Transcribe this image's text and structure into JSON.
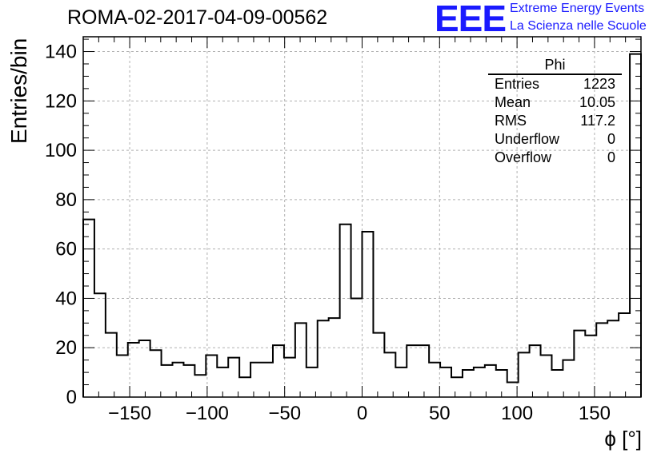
{
  "header": {
    "run_title": "ROMA-02-2017-04-09-00562",
    "logo_text": "EEE",
    "logo_line1": "Extreme Energy Events",
    "logo_line2": "La Scienza nelle Scuole",
    "brand_color": "#1a1aff"
  },
  "stats": {
    "title": "Phi",
    "rows": [
      {
        "label": "Entries",
        "value": "1223"
      },
      {
        "label": "Mean",
        "value": "10.05"
      },
      {
        "label": "RMS",
        "value": "117.2"
      },
      {
        "label": "Underflow",
        "value": "0"
      },
      {
        "label": "Overflow",
        "value": "0"
      }
    ]
  },
  "chart_data": {
    "type": "bar",
    "style": "step-histogram",
    "title": "ROMA-02-2017-04-09-00562",
    "xlabel": "ϕ [°]",
    "ylabel": "Entries/bin",
    "xlim": [
      -180,
      180
    ],
    "ylim": [
      0,
      146
    ],
    "bin_width": 7.2,
    "grid": true,
    "xticks": [
      -150,
      -100,
      -50,
      0,
      50,
      100,
      150
    ],
    "yticks": [
      0,
      20,
      40,
      60,
      80,
      100,
      120,
      140
    ],
    "values": [
      72,
      42,
      26,
      17,
      22,
      23,
      19,
      13,
      14,
      13,
      9,
      17,
      12,
      16,
      8,
      14,
      14,
      21,
      16,
      30,
      12,
      31,
      32,
      70,
      40,
      67,
      26,
      18,
      12,
      21,
      21,
      14,
      12,
      8,
      11,
      12,
      13,
      11,
      6,
      18,
      21,
      17,
      11,
      15,
      27,
      25,
      30,
      31,
      34,
      139
    ],
    "line_color": "#000000",
    "grid_color": "#b0b0b0"
  }
}
